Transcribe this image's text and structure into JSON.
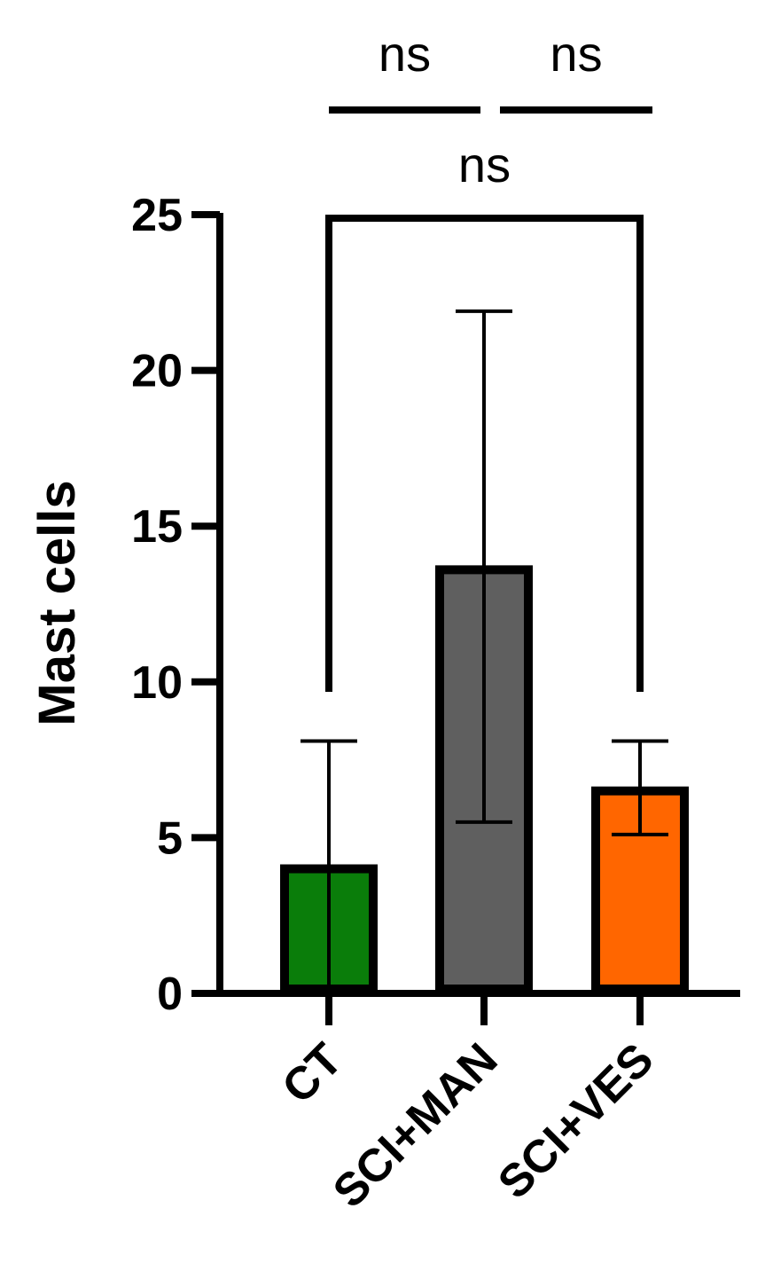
{
  "chart_data": {
    "type": "bar",
    "title": "",
    "xlabel": "",
    "ylabel": "Mast cells",
    "ylim": [
      0,
      25
    ],
    "yticks": [
      0,
      5,
      10,
      15,
      20,
      25
    ],
    "grid": false,
    "legend": "none",
    "categories": [
      "CT",
      "SCI+MAN",
      "SCI+VES"
    ],
    "values": [
      4.0,
      13.6,
      6.5
    ],
    "error_lower": [
      0.2,
      5.5,
      5.1
    ],
    "error_upper": [
      8.1,
      21.9,
      8.1
    ],
    "colors": [
      "#0a7d0a",
      "#5f5f5f",
      "#ff6600"
    ],
    "significance": [
      {
        "from": "CT",
        "to": "SCI+VES",
        "label": "ns",
        "style": "bracket"
      },
      {
        "from": "CT",
        "to": "SCI+MAN",
        "label": "ns",
        "style": "line"
      },
      {
        "from": "SCI+MAN",
        "to": "SCI+VES",
        "label": "ns",
        "style": "line"
      }
    ]
  }
}
